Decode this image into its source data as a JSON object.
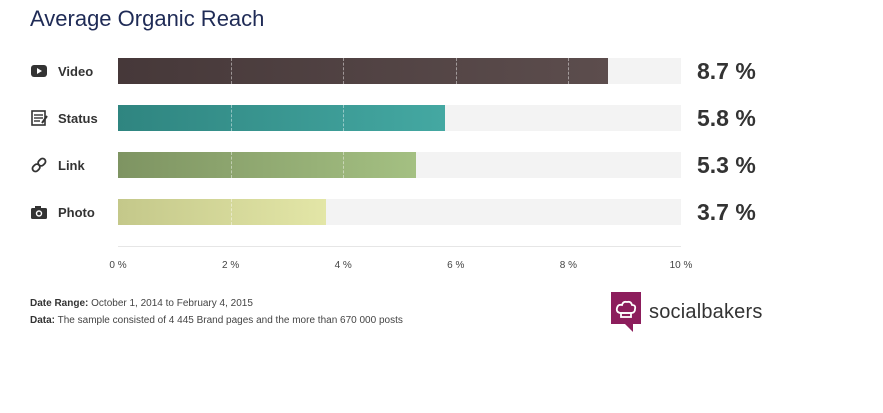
{
  "chart_data": {
    "type": "bar",
    "orientation": "horizontal",
    "title": "Average Organic Reach",
    "categories": [
      "Video",
      "Status",
      "Link",
      "Photo"
    ],
    "values": [
      8.7,
      5.8,
      5.3,
      3.7
    ],
    "value_labels": [
      "8.7 %",
      "5.8 %",
      "5.3 %",
      "3.7 %"
    ],
    "icons": [
      "video-icon",
      "status-icon",
      "link-icon",
      "photo-icon"
    ],
    "colors": [
      [
        "#463839",
        "#5c4d4d"
      ],
      [
        "#2f8580",
        "#44a8a2"
      ],
      [
        "#7e9462",
        "#a4c082"
      ],
      [
        "#c4c88a",
        "#e3e6a7"
      ]
    ],
    "xlim": [
      0,
      10
    ],
    "xticks": [
      0,
      2,
      4,
      6,
      8,
      10
    ],
    "xtick_labels": [
      "0 %",
      "2 %",
      "4 %",
      "6 %",
      "8 %",
      "10 %"
    ],
    "grid": true
  },
  "footer": {
    "date_range_label": "Date Range:",
    "date_range_value": "October 1, 2014 to February 4, 2015",
    "data_label": "Data:",
    "data_value": "The sample consisted of 4 445 Brand pages and the more than 670 000 posts"
  },
  "brand": {
    "name": "socialbakers",
    "color": "#8c1d5c"
  }
}
